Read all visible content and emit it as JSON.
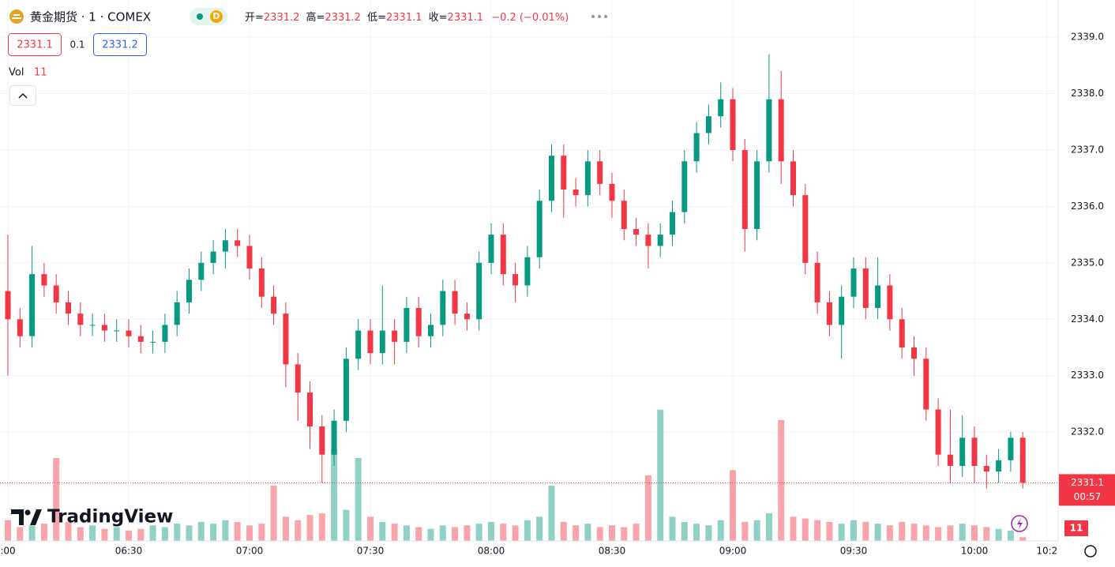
{
  "header": {
    "symbol": "黄金期货 · 1 · COMEX",
    "interval_badge": "D",
    "open_label": "开=",
    "open": "2331.2",
    "high_label": "高=",
    "high": "2331.2",
    "low_label": "低=",
    "low": "2331.1",
    "close_label": "收=",
    "close": "2331.1",
    "change": "−0.2 (−0.01%)"
  },
  "quote": {
    "bid": "2331.1",
    "spread": "0.1",
    "ask": "2331.2"
  },
  "volume_legend": "Vol",
  "logo": "TradingView",
  "chart_data": {
    "type": "candlestick",
    "categories": [
      ":00",
      null,
      null,
      null,
      null,
      null,
      null,
      null,
      null,
      null,
      "06:30",
      null,
      null,
      null,
      null,
      null,
      null,
      null,
      null,
      null,
      "07:00",
      null,
      null,
      null,
      null,
      null,
      null,
      null,
      null,
      null,
      "07:30",
      null,
      null,
      null,
      null,
      null,
      null,
      null,
      null,
      null,
      "08:00",
      null,
      null,
      null,
      null,
      null,
      null,
      null,
      null,
      null,
      "08:30",
      null,
      null,
      null,
      null,
      null,
      null,
      null,
      null,
      null,
      "09:00",
      null,
      null,
      null,
      null,
      null,
      null,
      null,
      null,
      null,
      "09:30",
      null,
      null,
      null,
      null,
      null,
      null,
      null,
      null,
      null,
      "10:00",
      null,
      null,
      null,
      null,
      null,
      "10:2"
    ],
    "open": [
      2334.5,
      2334.0,
      2333.7,
      2334.8,
      2334.6,
      2334.3,
      2334.1,
      2333.9,
      2333.9,
      2333.8,
      2333.8,
      2333.7,
      2333.6,
      2333.6,
      2333.9,
      2334.3,
      2334.7,
      2335.0,
      2335.2,
      2335.4,
      2335.3,
      2334.9,
      2334.4,
      2334.1,
      2333.2,
      2332.7,
      2332.1,
      2331.6,
      2332.2,
      2333.3,
      2333.8,
      2333.4,
      2333.8,
      2333.6,
      2334.2,
      2333.7,
      2333.9,
      2334.5,
      2334.1,
      2334.0,
      2335.0,
      2335.5,
      2334.8,
      2334.6,
      2335.1,
      2336.1,
      2336.9,
      2336.3,
      2336.2,
      2336.8,
      2336.4,
      2336.1,
      2335.6,
      2335.5,
      2335.3,
      2335.5,
      2335.9,
      2336.8,
      2337.3,
      2337.6,
      2337.9,
      2337.0,
      2335.6,
      2336.8,
      2337.9,
      2336.8,
      2336.2,
      2335.0,
      2334.3,
      2333.9,
      2334.4,
      2334.9,
      2334.2,
      2334.6,
      2334.0,
      2333.5,
      2333.3,
      2332.4,
      2331.6,
      2331.4,
      2331.9,
      2331.4,
      2331.3,
      2331.5,
      2331.9,
      null,
      null
    ],
    "high": [
      2335.5,
      2334.2,
      2335.3,
      2335.0,
      2334.8,
      2334.5,
      2334.3,
      2334.1,
      2334.1,
      2334.0,
      2334.0,
      2333.9,
      2333.8,
      2334.1,
      2334.5,
      2334.9,
      2335.2,
      2335.4,
      2335.6,
      2335.6,
      2335.5,
      2335.1,
      2334.6,
      2334.3,
      2333.4,
      2332.9,
      2332.3,
      2332.4,
      2333.5,
      2334.0,
      2334.0,
      2334.6,
      2334.0,
      2334.4,
      2334.4,
      2334.1,
      2334.7,
      2334.7,
      2334.3,
      2335.2,
      2335.7,
      2335.7,
      2335.0,
      2335.3,
      2336.3,
      2337.1,
      2337.1,
      2336.5,
      2337.0,
      2337.0,
      2336.6,
      2336.3,
      2335.8,
      2335.7,
      2335.7,
      2336.1,
      2337.0,
      2337.5,
      2337.8,
      2338.2,
      2338.1,
      2337.2,
      2337.0,
      2338.7,
      2338.4,
      2337.0,
      2336.4,
      2335.2,
      2334.5,
      2334.6,
      2335.1,
      2335.1,
      2335.1,
      2334.8,
      2334.2,
      2333.7,
      2333.5,
      2332.6,
      2332.4,
      2332.3,
      2332.1,
      2331.6,
      2331.7,
      2332.0,
      2332.0,
      null,
      null
    ],
    "low": [
      2333.0,
      2333.5,
      2333.5,
      2334.4,
      2334.1,
      2333.9,
      2333.7,
      2333.7,
      2333.6,
      2333.6,
      2333.5,
      2333.4,
      2333.4,
      2333.4,
      2333.7,
      2334.1,
      2334.5,
      2334.8,
      2334.9,
      2335.1,
      2334.7,
      2334.2,
      2333.9,
      2332.8,
      2332.2,
      2331.7,
      2331.1,
      2331.4,
      2332.0,
      2333.1,
      2333.2,
      2333.2,
      2333.2,
      2333.4,
      2333.5,
      2333.5,
      2333.7,
      2333.9,
      2333.8,
      2333.8,
      2334.8,
      2334.6,
      2334.3,
      2334.4,
      2334.9,
      2335.9,
      2335.8,
      2336.0,
      2336.0,
      2336.2,
      2335.8,
      2335.4,
      2335.3,
      2334.9,
      2335.1,
      2335.3,
      2335.7,
      2336.6,
      2337.1,
      2337.4,
      2336.8,
      2335.2,
      2335.4,
      2336.6,
      2336.4,
      2336.0,
      2334.8,
      2334.1,
      2333.7,
      2333.3,
      2334.2,
      2334.0,
      2334.0,
      2333.8,
      2333.3,
      2333.0,
      2332.2,
      2331.4,
      2331.1,
      2331.2,
      2331.1,
      2331.0,
      2331.1,
      2331.3,
      2331.0,
      null,
      null
    ],
    "close": [
      2334.0,
      2333.7,
      2334.8,
      2334.6,
      2334.3,
      2334.1,
      2333.9,
      2333.9,
      2333.8,
      2333.8,
      2333.7,
      2333.6,
      2333.6,
      2333.9,
      2334.3,
      2334.7,
      2335.0,
      2335.2,
      2335.4,
      2335.3,
      2334.9,
      2334.4,
      2334.1,
      2333.2,
      2332.7,
      2332.1,
      2331.6,
      2332.2,
      2333.3,
      2333.8,
      2333.4,
      2333.8,
      2333.6,
      2334.2,
      2333.7,
      2333.9,
      2334.5,
      2334.1,
      2334.0,
      2335.0,
      2335.5,
      2334.8,
      2334.6,
      2335.1,
      2336.1,
      2336.9,
      2336.3,
      2336.2,
      2336.8,
      2336.4,
      2336.1,
      2335.6,
      2335.5,
      2335.3,
      2335.5,
      2335.9,
      2336.8,
      2337.3,
      2337.6,
      2337.9,
      2337.0,
      2335.6,
      2336.8,
      2337.9,
      2336.8,
      2336.2,
      2335.0,
      2334.3,
      2333.9,
      2334.4,
      2334.9,
      2334.2,
      2334.6,
      2334.0,
      2333.5,
      2333.3,
      2332.4,
      2331.6,
      2331.4,
      2331.9,
      2331.4,
      2331.3,
      2331.5,
      2331.9,
      2331.1,
      null,
      null
    ],
    "volume": [
      60,
      40,
      45,
      50,
      240,
      55,
      40,
      45,
      35,
      40,
      30,
      35,
      45,
      40,
      50,
      45,
      55,
      50,
      60,
      55,
      45,
      50,
      160,
      70,
      60,
      75,
      80,
      265,
      90,
      240,
      70,
      55,
      50,
      45,
      40,
      35,
      45,
      40,
      45,
      50,
      55,
      50,
      45,
      60,
      70,
      160,
      55,
      45,
      50,
      40,
      45,
      40,
      50,
      190,
      380,
      70,
      55,
      50,
      45,
      60,
      205,
      55,
      60,
      80,
      350,
      70,
      65,
      60,
      55,
      50,
      60,
      55,
      50,
      45,
      55,
      50,
      45,
      40,
      45,
      50,
      45,
      40,
      35,
      30,
      11,
      null,
      null
    ],
    "up_color": "#089981",
    "down_color": "#f23645",
    "ylim": [
      2330.07,
      2339.66
    ],
    "yticks": [
      {
        "value": 2332,
        "label": "2332.0"
      },
      {
        "value": 2333,
        "label": "2333.0"
      },
      {
        "value": 2334,
        "label": "2334.0"
      },
      {
        "value": 2335,
        "label": "2335.0"
      },
      {
        "value": 2336,
        "label": "2336.0"
      },
      {
        "value": 2337,
        "label": "2337.0"
      },
      {
        "value": 2338,
        "label": "2338.0"
      },
      {
        "value": 2339,
        "label": "2339.0"
      }
    ],
    "volume_lim": [
      0,
      400
    ],
    "last_price": 2331.1,
    "last_price_label": "2331.1",
    "countdown": "00:57",
    "grid": true
  }
}
